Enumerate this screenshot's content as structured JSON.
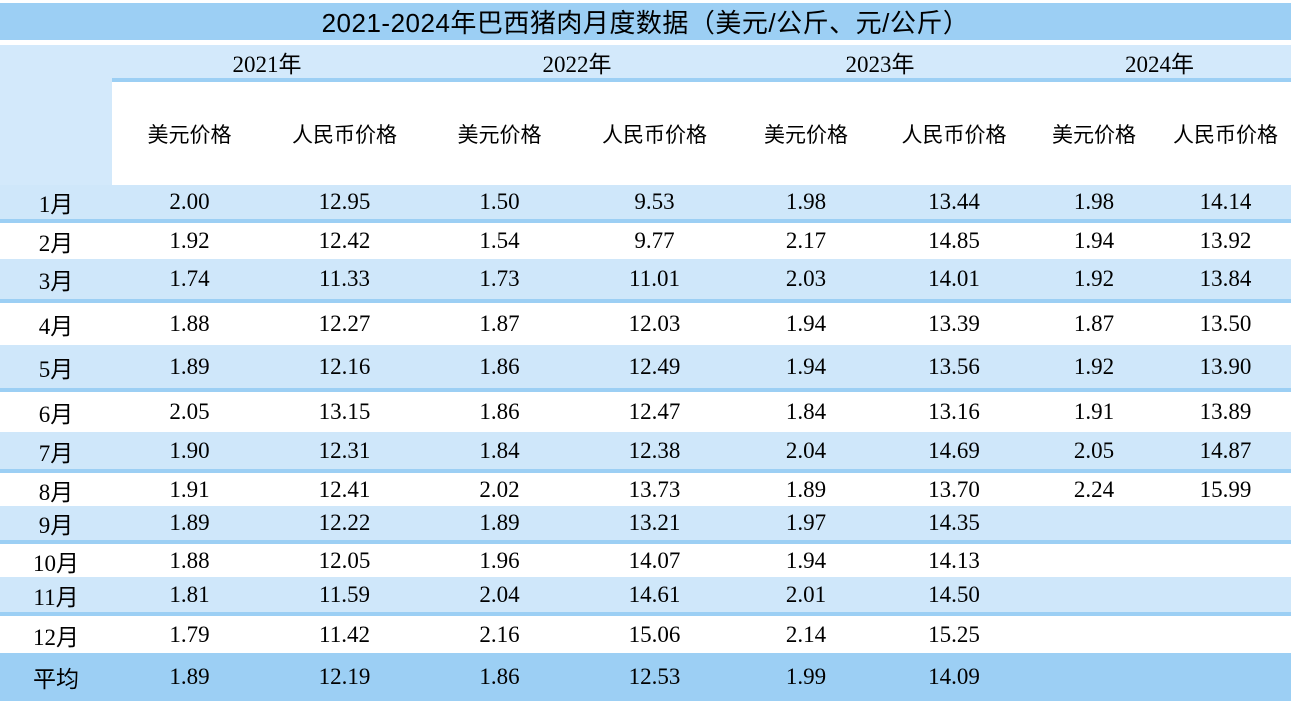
{
  "title": "2021-2024年巴西猪肉月度数据（美元/公斤、元/公斤）",
  "years": [
    "2021年",
    "2022年",
    "2023年",
    "2024年"
  ],
  "sub_headers": [
    "美元价格",
    "人民币价格",
    "美元价格",
    "人民币价格",
    "美元价格",
    "人民币价格",
    "美元价格",
    "人民币价格"
  ],
  "table": {
    "rows": [
      {
        "label": "1月",
        "values": [
          "2.00",
          "12.95",
          "1.50",
          "9.53",
          "1.98",
          "13.44",
          "1.98",
          "14.14"
        ]
      },
      {
        "label": "2月",
        "values": [
          "1.92",
          "12.42",
          "1.54",
          "9.77",
          "2.17",
          "14.85",
          "1.94",
          "13.92"
        ]
      },
      {
        "label": "3月",
        "values": [
          "1.74",
          "11.33",
          "1.73",
          "11.01",
          "2.03",
          "14.01",
          "1.92",
          "13.84"
        ]
      },
      {
        "label": "4月",
        "values": [
          "1.88",
          "12.27",
          "1.87",
          "12.03",
          "1.94",
          "13.39",
          "1.87",
          "13.50"
        ]
      },
      {
        "label": "5月",
        "values": [
          "1.89",
          "12.16",
          "1.86",
          "12.49",
          "1.94",
          "13.56",
          "1.92",
          "13.90"
        ]
      },
      {
        "label": "6月",
        "values": [
          "2.05",
          "13.15",
          "1.86",
          "12.47",
          "1.84",
          "13.16",
          "1.91",
          "13.89"
        ]
      },
      {
        "label": "7月",
        "values": [
          "1.90",
          "12.31",
          "1.84",
          "12.38",
          "2.04",
          "14.69",
          "2.05",
          "14.87"
        ]
      },
      {
        "label": "8月",
        "values": [
          "1.91",
          "12.41",
          "2.02",
          "13.73",
          "1.89",
          "13.70",
          "2.24",
          "15.99"
        ]
      },
      {
        "label": "9月",
        "values": [
          "1.89",
          "12.22",
          "1.89",
          "13.21",
          "1.97",
          "14.35",
          "",
          ""
        ]
      },
      {
        "label": "10月",
        "values": [
          "1.88",
          "12.05",
          "1.96",
          "14.07",
          "1.94",
          "14.13",
          "",
          ""
        ]
      },
      {
        "label": "11月",
        "values": [
          "1.81",
          "11.59",
          "2.04",
          "14.61",
          "2.01",
          "14.50",
          "",
          ""
        ]
      },
      {
        "label": "12月",
        "values": [
          "1.79",
          "11.42",
          "2.16",
          "15.06",
          "2.14",
          "15.25",
          "",
          ""
        ]
      },
      {
        "label": "平均",
        "values": [
          "1.89",
          "12.19",
          "1.86",
          "12.53",
          "1.99",
          "14.09",
          "",
          ""
        ]
      }
    ]
  },
  "colors": {
    "title_bar": "#9CCFF4",
    "band_light_blue": "#D3E9FB",
    "row_light_blue": "#CFE7FA",
    "separator_blue": "#9CCFF4",
    "average_row": "#9CCFF4",
    "text": "#000000",
    "background": "#FFFFFF"
  },
  "chart_data": {
    "type": "table",
    "title": "2021-2024年巴西猪肉月度数据（美元/公斤、元/公斤）",
    "categories": [
      "1月",
      "2月",
      "3月",
      "4月",
      "5月",
      "6月",
      "7月",
      "8月",
      "9月",
      "10月",
      "11月",
      "12月",
      "平均"
    ],
    "series": [
      {
        "name": "2021年 美元价格",
        "values": [
          2.0,
          1.92,
          1.74,
          1.88,
          1.89,
          2.05,
          1.9,
          1.91,
          1.89,
          1.88,
          1.81,
          1.79,
          1.89
        ]
      },
      {
        "name": "2021年 人民币价格",
        "values": [
          12.95,
          12.42,
          11.33,
          12.27,
          12.16,
          13.15,
          12.31,
          12.41,
          12.22,
          12.05,
          11.59,
          11.42,
          12.19
        ]
      },
      {
        "name": "2022年 美元价格",
        "values": [
          1.5,
          1.54,
          1.73,
          1.87,
          1.86,
          1.86,
          1.84,
          2.02,
          1.89,
          1.96,
          2.04,
          2.16,
          1.86
        ]
      },
      {
        "name": "2022年 人民币价格",
        "values": [
          9.53,
          9.77,
          11.01,
          12.03,
          12.49,
          12.47,
          12.38,
          13.73,
          13.21,
          14.07,
          14.61,
          15.06,
          12.53
        ]
      },
      {
        "name": "2023年 美元价格",
        "values": [
          1.98,
          2.17,
          2.03,
          1.94,
          1.94,
          1.84,
          2.04,
          1.89,
          1.97,
          1.94,
          2.01,
          2.14,
          1.99
        ]
      },
      {
        "name": "2023年 人民币价格",
        "values": [
          13.44,
          14.85,
          14.01,
          13.39,
          13.56,
          13.16,
          14.69,
          13.7,
          14.35,
          14.13,
          14.5,
          15.25,
          14.09
        ]
      },
      {
        "name": "2024年 美元价格",
        "values": [
          1.98,
          1.94,
          1.92,
          1.87,
          1.92,
          1.91,
          2.05,
          2.24,
          null,
          null,
          null,
          null,
          null
        ]
      },
      {
        "name": "2024年 人民币价格",
        "values": [
          14.14,
          13.92,
          13.84,
          13.5,
          13.9,
          13.89,
          14.87,
          15.99,
          null,
          null,
          null,
          null,
          null
        ]
      }
    ]
  }
}
